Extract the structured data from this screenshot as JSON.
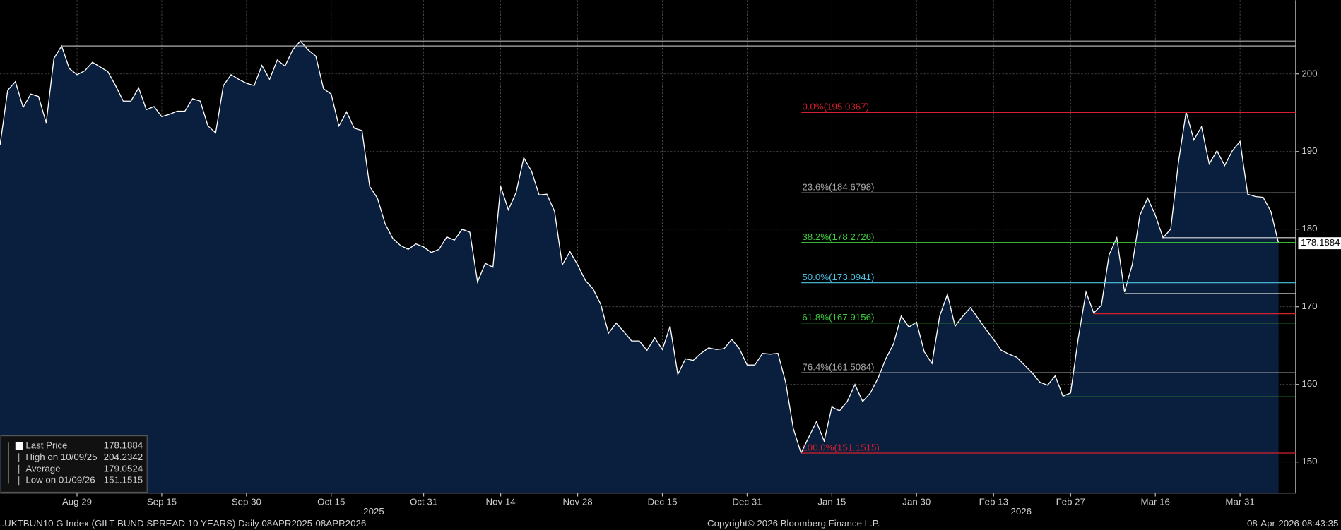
{
  "chart_data": {
    "type": "area",
    "categories": [
      null,
      null,
      null,
      null,
      null,
      null,
      null,
      null,
      null,
      null,
      "Aug 29",
      null,
      null,
      null,
      null,
      null,
      null,
      null,
      null,
      null,
      null,
      "Sep 15",
      null,
      null,
      null,
      null,
      null,
      null,
      null,
      null,
      null,
      null,
      "Sep 30",
      null,
      null,
      null,
      null,
      null,
      null,
      null,
      null,
      null,
      null,
      "Oct 15",
      null,
      null,
      null,
      null,
      null,
      null,
      null,
      null,
      null,
      null,
      null,
      "Oct 31",
      null,
      null,
      null,
      null,
      null,
      null,
      null,
      null,
      null,
      "Nov 14",
      null,
      null,
      null,
      null,
      null,
      null,
      null,
      null,
      null,
      "Nov 28",
      null,
      null,
      null,
      null,
      null,
      null,
      null,
      null,
      null,
      null,
      "Dec 15",
      null,
      null,
      null,
      null,
      null,
      null,
      null,
      null,
      null,
      null,
      "Dec 31",
      null,
      null,
      null,
      null,
      null,
      null,
      null,
      null,
      null,
      null,
      "Jan 15",
      null,
      null,
      null,
      null,
      null,
      null,
      null,
      null,
      null,
      null,
      "Jan 30",
      null,
      null,
      null,
      null,
      null,
      null,
      null,
      null,
      null,
      "Feb 13",
      null,
      null,
      null,
      null,
      null,
      null,
      null,
      null,
      null,
      "Feb 27",
      null,
      null,
      null,
      null,
      null,
      null,
      null,
      null,
      null,
      null,
      "Mar 16",
      null,
      null,
      null,
      null,
      null,
      null,
      null,
      null,
      null,
      null,
      "Mar 31",
      null,
      null,
      null,
      null,
      null
    ],
    "year_labels": [
      "2025",
      "2026"
    ],
    "series": [
      {
        "name": "Last Price",
        "color": "#ffffff",
        "fill": "#0a1f3d",
        "values": [
          190.8,
          197.9,
          199,
          195.7,
          197.4,
          197.1,
          193.7,
          202,
          203.6,
          200.7,
          199.9,
          200.4,
          201.5,
          200.9,
          200.3,
          198.5,
          196.5,
          196.5,
          198.2,
          195.4,
          195.8,
          194.5,
          194.8,
          195.2,
          195.2,
          196.8,
          196.5,
          193.3,
          192.4,
          198.5,
          199.9,
          199.3,
          198.8,
          198.5,
          201.1,
          199.3,
          201.8,
          201,
          203.1,
          204.2342,
          203.1,
          202.3,
          198.1,
          197.4,
          193.3,
          195.1,
          193,
          192.7,
          185.5,
          184,
          180.7,
          178.8,
          177.9,
          177.4,
          178.1,
          177.7,
          177,
          177.4,
          179,
          178.6,
          180,
          179.6,
          173.2,
          175.6,
          175.1,
          185.5,
          182.5,
          184.7,
          189.2,
          187.5,
          184.4,
          184.5,
          182.3,
          175.4,
          177.1,
          175.4,
          173.4,
          172.3,
          170.3,
          166.6,
          167.9,
          166.8,
          165.6,
          165.6,
          164.4,
          166,
          164.5,
          167.5,
          161.3,
          163.3,
          163.1,
          164,
          164.7,
          164.5,
          164.6,
          165.8,
          164.6,
          162.5,
          162.5,
          164,
          163.9,
          164,
          160.3,
          154.3,
          151.1515,
          153.2,
          155.2,
          152.7,
          157.1,
          156.6,
          157.8,
          160,
          157.8,
          158.9,
          160.8,
          163.3,
          165.2,
          168.8,
          167.4,
          168,
          164.2,
          162.7,
          168.8,
          171.6,
          167.5,
          168.8,
          169.9,
          168.5,
          167.1,
          165.8,
          164.4,
          163.9,
          163.5,
          162.5,
          161.5,
          160.3,
          159.9,
          161.1,
          158.5,
          158.9,
          166,
          171.9,
          169.2,
          170.2,
          176.7,
          178.9,
          171.9,
          175.4,
          181.8,
          184,
          181.8,
          178.9,
          180,
          188.6,
          195.1,
          191.5,
          193.2,
          188.4,
          190.1,
          188.2,
          190.1,
          191.3,
          184.5,
          184.2,
          184.1,
          182.3,
          178.1884
        ]
      }
    ],
    "ylim": [
      146,
      209.5
    ],
    "yticks": [
      150,
      160,
      170,
      180,
      190,
      200
    ],
    "grid": true,
    "fib_levels": [
      {
        "label": "0.0%(195.0367)",
        "value": 195.0367,
        "color": "#d4202c"
      },
      {
        "label": "23.6%(184.6798)",
        "value": 184.6798,
        "color": "#a8a8a8"
      },
      {
        "label": "38.2%(178.2726)",
        "value": 178.2726,
        "color": "#3ccf3c"
      },
      {
        "label": "50.0%(173.0941)",
        "value": 173.0941,
        "color": "#4ec4e6"
      },
      {
        "label": "61.8%(167.9156)",
        "value": 167.9156,
        "color": "#3ccf3c"
      },
      {
        "label": "76.4%(161.5084)",
        "value": 161.5084,
        "color": "#a8a8a8"
      },
      {
        "label": "100.0%(151.1515)",
        "value": 151.1515,
        "color": "#d4202c"
      }
    ],
    "horizontal_lines": [
      {
        "value": 204.2342,
        "from_index": 39,
        "color": "#b0b0b0"
      },
      {
        "value": 203.6,
        "from_index": 8,
        "color": "#b0b0b0"
      },
      {
        "value": 178.9,
        "from_index": 151,
        "color": "#e0e0e0"
      },
      {
        "value": 171.7,
        "from_index": 146,
        "color": "#e0e0e0"
      },
      {
        "value": 169.1,
        "from_index": 142,
        "color": "#d4202c"
      },
      {
        "value": 158.4,
        "from_index": 138,
        "color": "#3ccf3c"
      }
    ],
    "legend": [
      {
        "label": "Last Price",
        "value": 178.1884
      },
      {
        "label": "High on 10/09/25",
        "value": 204.2342
      },
      {
        "label": "Average",
        "value": 179.0524
      },
      {
        "label": "Low on 01/09/26",
        "value": 151.1515
      }
    ],
    "footer": {
      "left": ".UKTBUN10 G Index (GILT BUND SPREAD 10 YEARS) Daily 08APR2025-08APR2026",
      "center": "Copyright© 2026 Bloomberg Finance L.P.",
      "right": "08-Apr-2026 08:43:35"
    }
  }
}
